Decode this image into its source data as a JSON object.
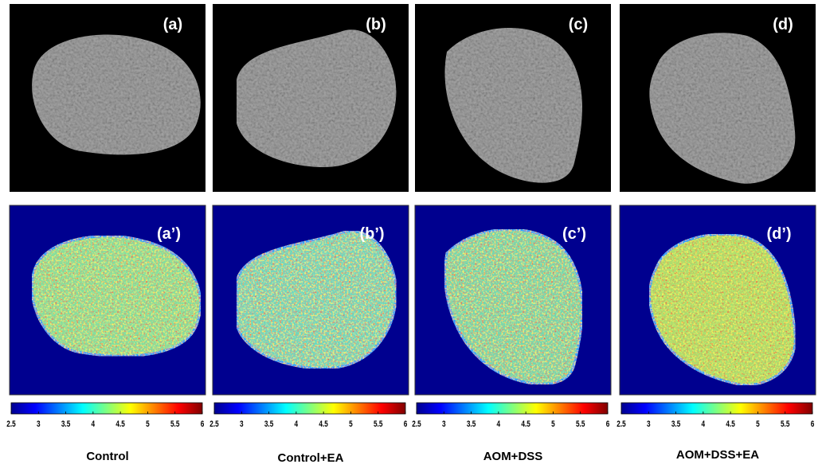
{
  "panels": [
    {
      "label": "(a)",
      "heatmap_label": "(a’)",
      "group": "Control"
    },
    {
      "label": "(b)",
      "heatmap_label": "(b’)",
      "group": "Control+EA"
    },
    {
      "label": "(c)",
      "heatmap_label": "(c’)",
      "group": "AOM+DSS"
    },
    {
      "label": "(d)",
      "heatmap_label": "(d’)",
      "group": "AOM+DSS+EA"
    }
  ],
  "colorbar": {
    "lim": [
      2.5,
      6
    ],
    "ticks": [
      2.5,
      3,
      3.5,
      4,
      4.5,
      5,
      5.5,
      6
    ]
  }
}
